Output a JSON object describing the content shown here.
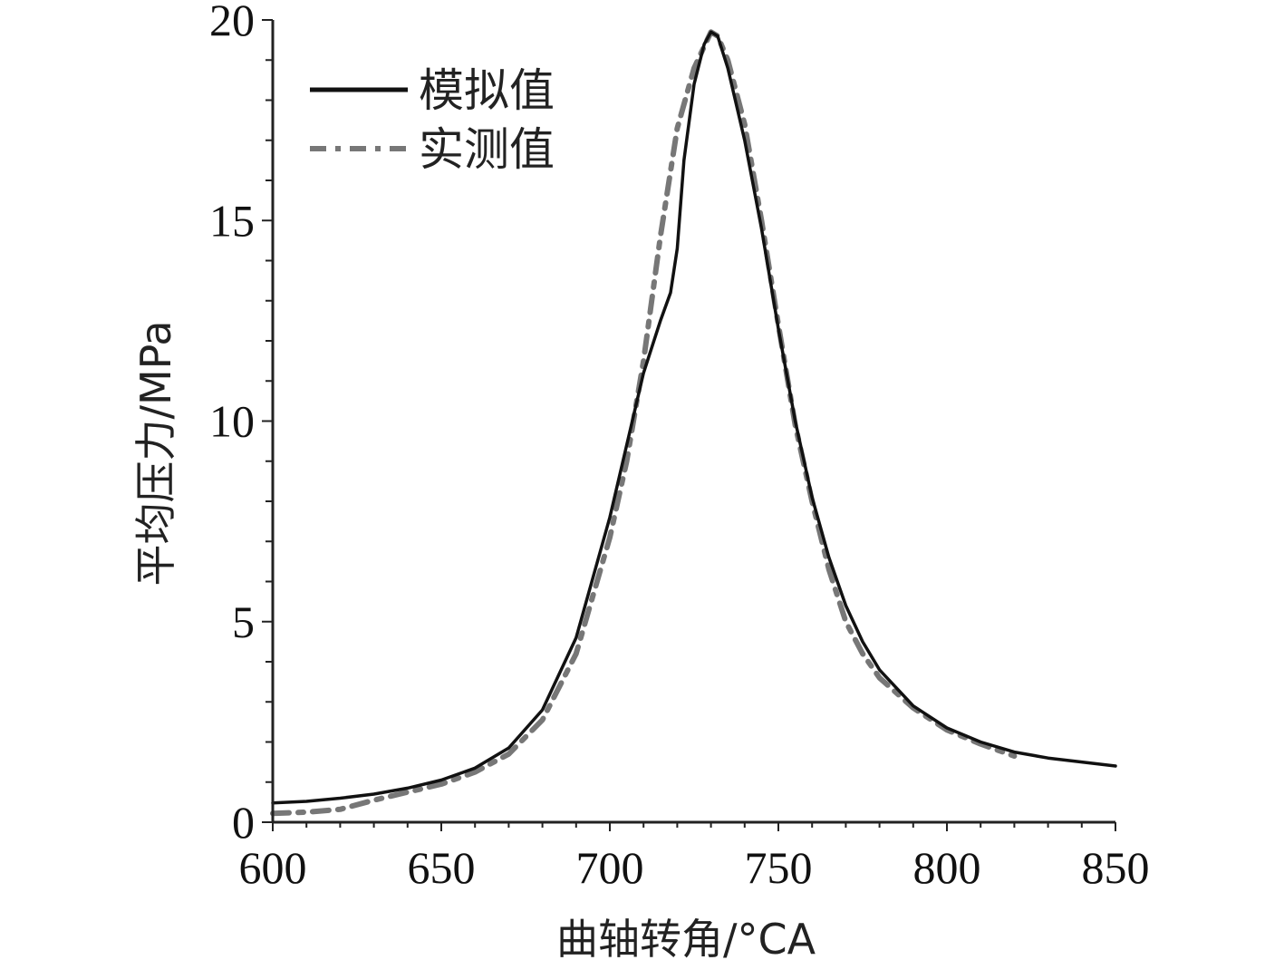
{
  "chart_data": {
    "type": "line",
    "xlabel": "曲轴转角/°CA",
    "ylabel": "平均压力/MPa",
    "xlim": [
      600,
      850
    ],
    "ylim": [
      0,
      20
    ],
    "x_ticks": [
      600,
      650,
      700,
      750,
      800,
      850
    ],
    "y_ticks": [
      0,
      5,
      10,
      15,
      20
    ],
    "x_tick_labels": [
      "600",
      "650",
      "700",
      "750",
      "800",
      "850"
    ],
    "y_tick_labels": [
      "0",
      "5",
      "10",
      "15",
      "20"
    ],
    "grid": false,
    "legend_position": "top-left",
    "series": [
      {
        "name": "模拟值",
        "style": "solid",
        "color": "#111111",
        "points": [
          [
            600,
            0.48
          ],
          [
            610,
            0.52
          ],
          [
            620,
            0.6
          ],
          [
            630,
            0.7
          ],
          [
            640,
            0.85
          ],
          [
            650,
            1.05
          ],
          [
            660,
            1.35
          ],
          [
            670,
            1.85
          ],
          [
            680,
            2.8
          ],
          [
            690,
            4.6
          ],
          [
            700,
            7.6
          ],
          [
            705,
            9.4
          ],
          [
            710,
            11.2
          ],
          [
            715,
            12.5
          ],
          [
            718,
            13.2
          ],
          [
            720,
            14.3
          ],
          [
            722,
            16.5
          ],
          [
            725,
            18.4
          ],
          [
            728,
            19.4
          ],
          [
            730,
            19.7
          ],
          [
            732,
            19.6
          ],
          [
            735,
            18.8
          ],
          [
            740,
            17.0
          ],
          [
            745,
            14.8
          ],
          [
            750,
            12.3
          ],
          [
            755,
            10.0
          ],
          [
            760,
            8.1
          ],
          [
            765,
            6.6
          ],
          [
            770,
            5.4
          ],
          [
            775,
            4.5
          ],
          [
            780,
            3.8
          ],
          [
            790,
            2.9
          ],
          [
            800,
            2.35
          ],
          [
            810,
            2.0
          ],
          [
            820,
            1.75
          ],
          [
            830,
            1.6
          ],
          [
            840,
            1.5
          ],
          [
            850,
            1.4
          ]
        ]
      },
      {
        "name": "实测值",
        "style": "dashed",
        "color": "#777777",
        "points": [
          [
            600,
            0.22
          ],
          [
            610,
            0.25
          ],
          [
            620,
            0.32
          ],
          [
            630,
            0.55
          ],
          [
            640,
            0.75
          ],
          [
            650,
            0.95
          ],
          [
            660,
            1.25
          ],
          [
            670,
            1.7
          ],
          [
            680,
            2.55
          ],
          [
            690,
            4.2
          ],
          [
            700,
            7.1
          ],
          [
            705,
            9.0
          ],
          [
            710,
            11.5
          ],
          [
            715,
            14.6
          ],
          [
            720,
            17.3
          ],
          [
            725,
            18.8
          ],
          [
            730,
            19.7
          ],
          [
            732,
            19.6
          ],
          [
            735,
            19.0
          ],
          [
            740,
            17.4
          ],
          [
            745,
            15.0
          ],
          [
            750,
            12.4
          ],
          [
            755,
            9.9
          ],
          [
            760,
            8.0
          ],
          [
            765,
            6.3
          ],
          [
            770,
            5.0
          ],
          [
            775,
            4.2
          ],
          [
            780,
            3.6
          ],
          [
            790,
            2.85
          ],
          [
            800,
            2.3
          ],
          [
            810,
            1.95
          ],
          [
            815,
            1.8
          ],
          [
            820,
            1.65
          ]
        ]
      }
    ]
  }
}
